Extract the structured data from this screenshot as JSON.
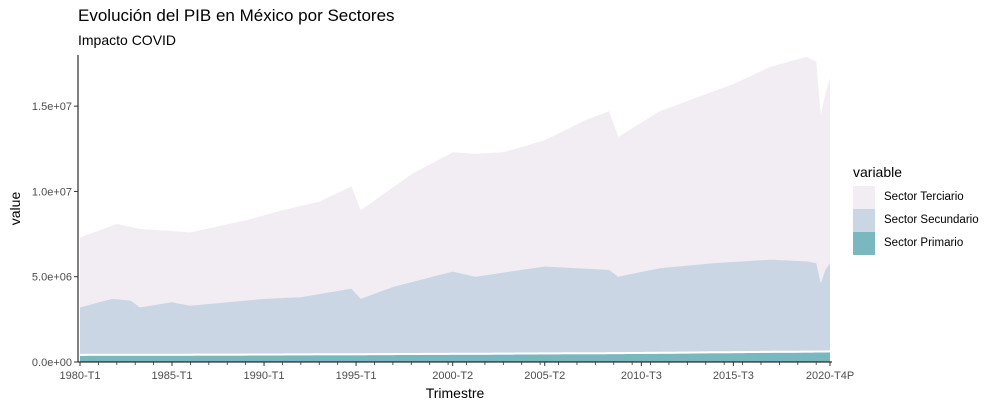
{
  "title": "Evolución del PIB en México por Sectores",
  "subtitle": "Impacto COVID",
  "chart_data": {
    "type": "area",
    "stacked": true,
    "xlabel": "Trimestre",
    "ylabel": "value",
    "ylim": [
      0,
      18000000
    ],
    "yticks": [
      {
        "value": 0,
        "label": "0.0e+00"
      },
      {
        "value": 5000000,
        "label": "5.0e+06"
      },
      {
        "value": 10000000,
        "label": "1.0e+07"
      },
      {
        "value": 15000000,
        "label": "1.5e+07"
      }
    ],
    "xticks": [
      "1980-T1",
      "1985-T1",
      "1990-T1",
      "1995-T1",
      "2000-T2",
      "2005-T2",
      "2010-T3",
      "2015-T3",
      "2020-T4P"
    ],
    "x_range": [
      "1980-T1",
      "2020-T4P"
    ],
    "legend_title": "variable",
    "legend_position": "right",
    "grid": false,
    "series": [
      {
        "name": "Sector Terciario",
        "color": "#f2edf3",
        "x": [
          "1980-T1",
          "1982-T1",
          "1983-T2",
          "1986-T1",
          "1989-T1",
          "1991-T1",
          "1993-T1",
          "1994-T4",
          "1995-T2",
          "1998-T1",
          "2000-T2",
          "2001-T3",
          "2003-T1",
          "2005-T2",
          "2007-T3",
          "2008-T4",
          "2009-T2",
          "2011-T3",
          "2013-T3",
          "2015-T3",
          "2017-T3",
          "2019-T3",
          "2020-T1",
          "2020-T2",
          "2020-T3",
          "2020-T4P"
        ],
        "values": [
          7300000,
          8100000,
          7800000,
          7600000,
          8300000,
          8900000,
          9400000,
          10300000,
          8900000,
          11000000,
          12300000,
          12200000,
          12300000,
          13000000,
          14200000,
          14700000,
          13200000,
          14700000,
          15500000,
          16300000,
          17300000,
          17900000,
          17600000,
          14500000,
          15700000,
          16700000
        ]
      },
      {
        "name": "Sector Secundario",
        "color": "#cbd6e4",
        "x": [
          "1980-T1",
          "1981-T4",
          "1982-T4",
          "1983-T2",
          "1985-T1",
          "1986-T1",
          "1988-T1",
          "1990-T1",
          "1992-T1",
          "1994-T4",
          "1995-T2",
          "1997-T1",
          "2000-T2",
          "2001-T3",
          "2005-T2",
          "2008-T4",
          "2009-T2",
          "2011-T3",
          "2014-T3",
          "2017-T3",
          "2019-T3",
          "2020-T1",
          "2020-T2",
          "2020-T3",
          "2020-T4P"
        ],
        "values": [
          3200000,
          3700000,
          3600000,
          3200000,
          3500000,
          3300000,
          3500000,
          3700000,
          3800000,
          4300000,
          3700000,
          4400000,
          5300000,
          5000000,
          5600000,
          5400000,
          5000000,
          5500000,
          5800000,
          6000000,
          5900000,
          5800000,
          4600000,
          5400000,
          5800000
        ]
      },
      {
        "name": "Sector Primario",
        "color": "#78b8be",
        "x": [
          "1980-T1",
          "1990-T1",
          "2000-T2",
          "2010-T3",
          "2015-T3",
          "2020-T4P"
        ],
        "values": [
          360000,
          380000,
          420000,
          470000,
          520000,
          560000
        ]
      }
    ]
  }
}
